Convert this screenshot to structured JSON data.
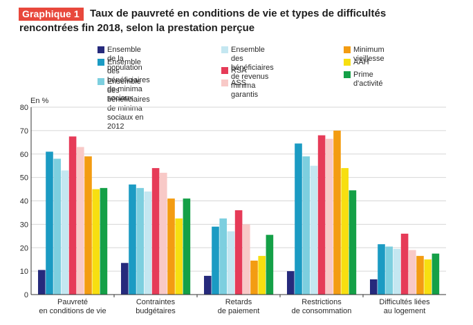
{
  "header": {
    "badge": "Graphique 1",
    "title_line1": "Taux de pauvreté en conditions de vie et types de difficultés",
    "title_line2": "rencontrées fin 2018, selon la prestation perçue"
  },
  "chart_data": {
    "type": "bar",
    "ylabel": "En %",
    "ylim": [
      0,
      80
    ],
    "yticks": [
      0,
      10,
      20,
      30,
      40,
      50,
      60,
      70,
      80
    ],
    "grid": true,
    "categories": [
      "Pauvreté\nen conditions de vie",
      "Contraintes\nbudgétaires",
      "Retards\nde paiement",
      "Restrictions\nde consommation",
      "Difficultés liées\nau logement"
    ],
    "series": [
      {
        "name": "Ensemble de la population",
        "color": "#262a7c",
        "values": [
          10.5,
          13.5,
          8,
          10,
          6.5
        ]
      },
      {
        "name": "Ensemble des bénéficiaires\nde minima sociaux",
        "color": "#1b9bc3",
        "values": [
          61,
          47,
          29,
          64.5,
          21.5
        ]
      },
      {
        "name": "Ensemble des bénéficiaires\nde minima sociaux en 2012",
        "color": "#7dcfdf",
        "values": [
          58,
          45.5,
          32.5,
          59,
          20.5
        ]
      },
      {
        "name": "Ensemble des bénéficiaires\nde revenus minima garantis",
        "color": "#c4e7f1",
        "values": [
          53,
          44,
          27,
          55,
          19.5
        ]
      },
      {
        "name": "RSA",
        "color": "#e63b58",
        "values": [
          67.5,
          54,
          36,
          68,
          26
        ]
      },
      {
        "name": "ASS",
        "color": "#f8c9c7",
        "values": [
          63,
          52,
          30,
          66.5,
          19
        ]
      },
      {
        "name": "Minimum vieillesse",
        "color": "#f39c12",
        "values": [
          59,
          41,
          14.5,
          70,
          16.5
        ]
      },
      {
        "name": "AAH",
        "color": "#f7df10",
        "values": [
          45,
          32.5,
          16.5,
          54,
          15
        ]
      },
      {
        "name": "Prime d'activité",
        "color": "#14a047",
        "values": [
          45.5,
          41,
          25.5,
          44.5,
          17.5
        ]
      }
    ]
  }
}
